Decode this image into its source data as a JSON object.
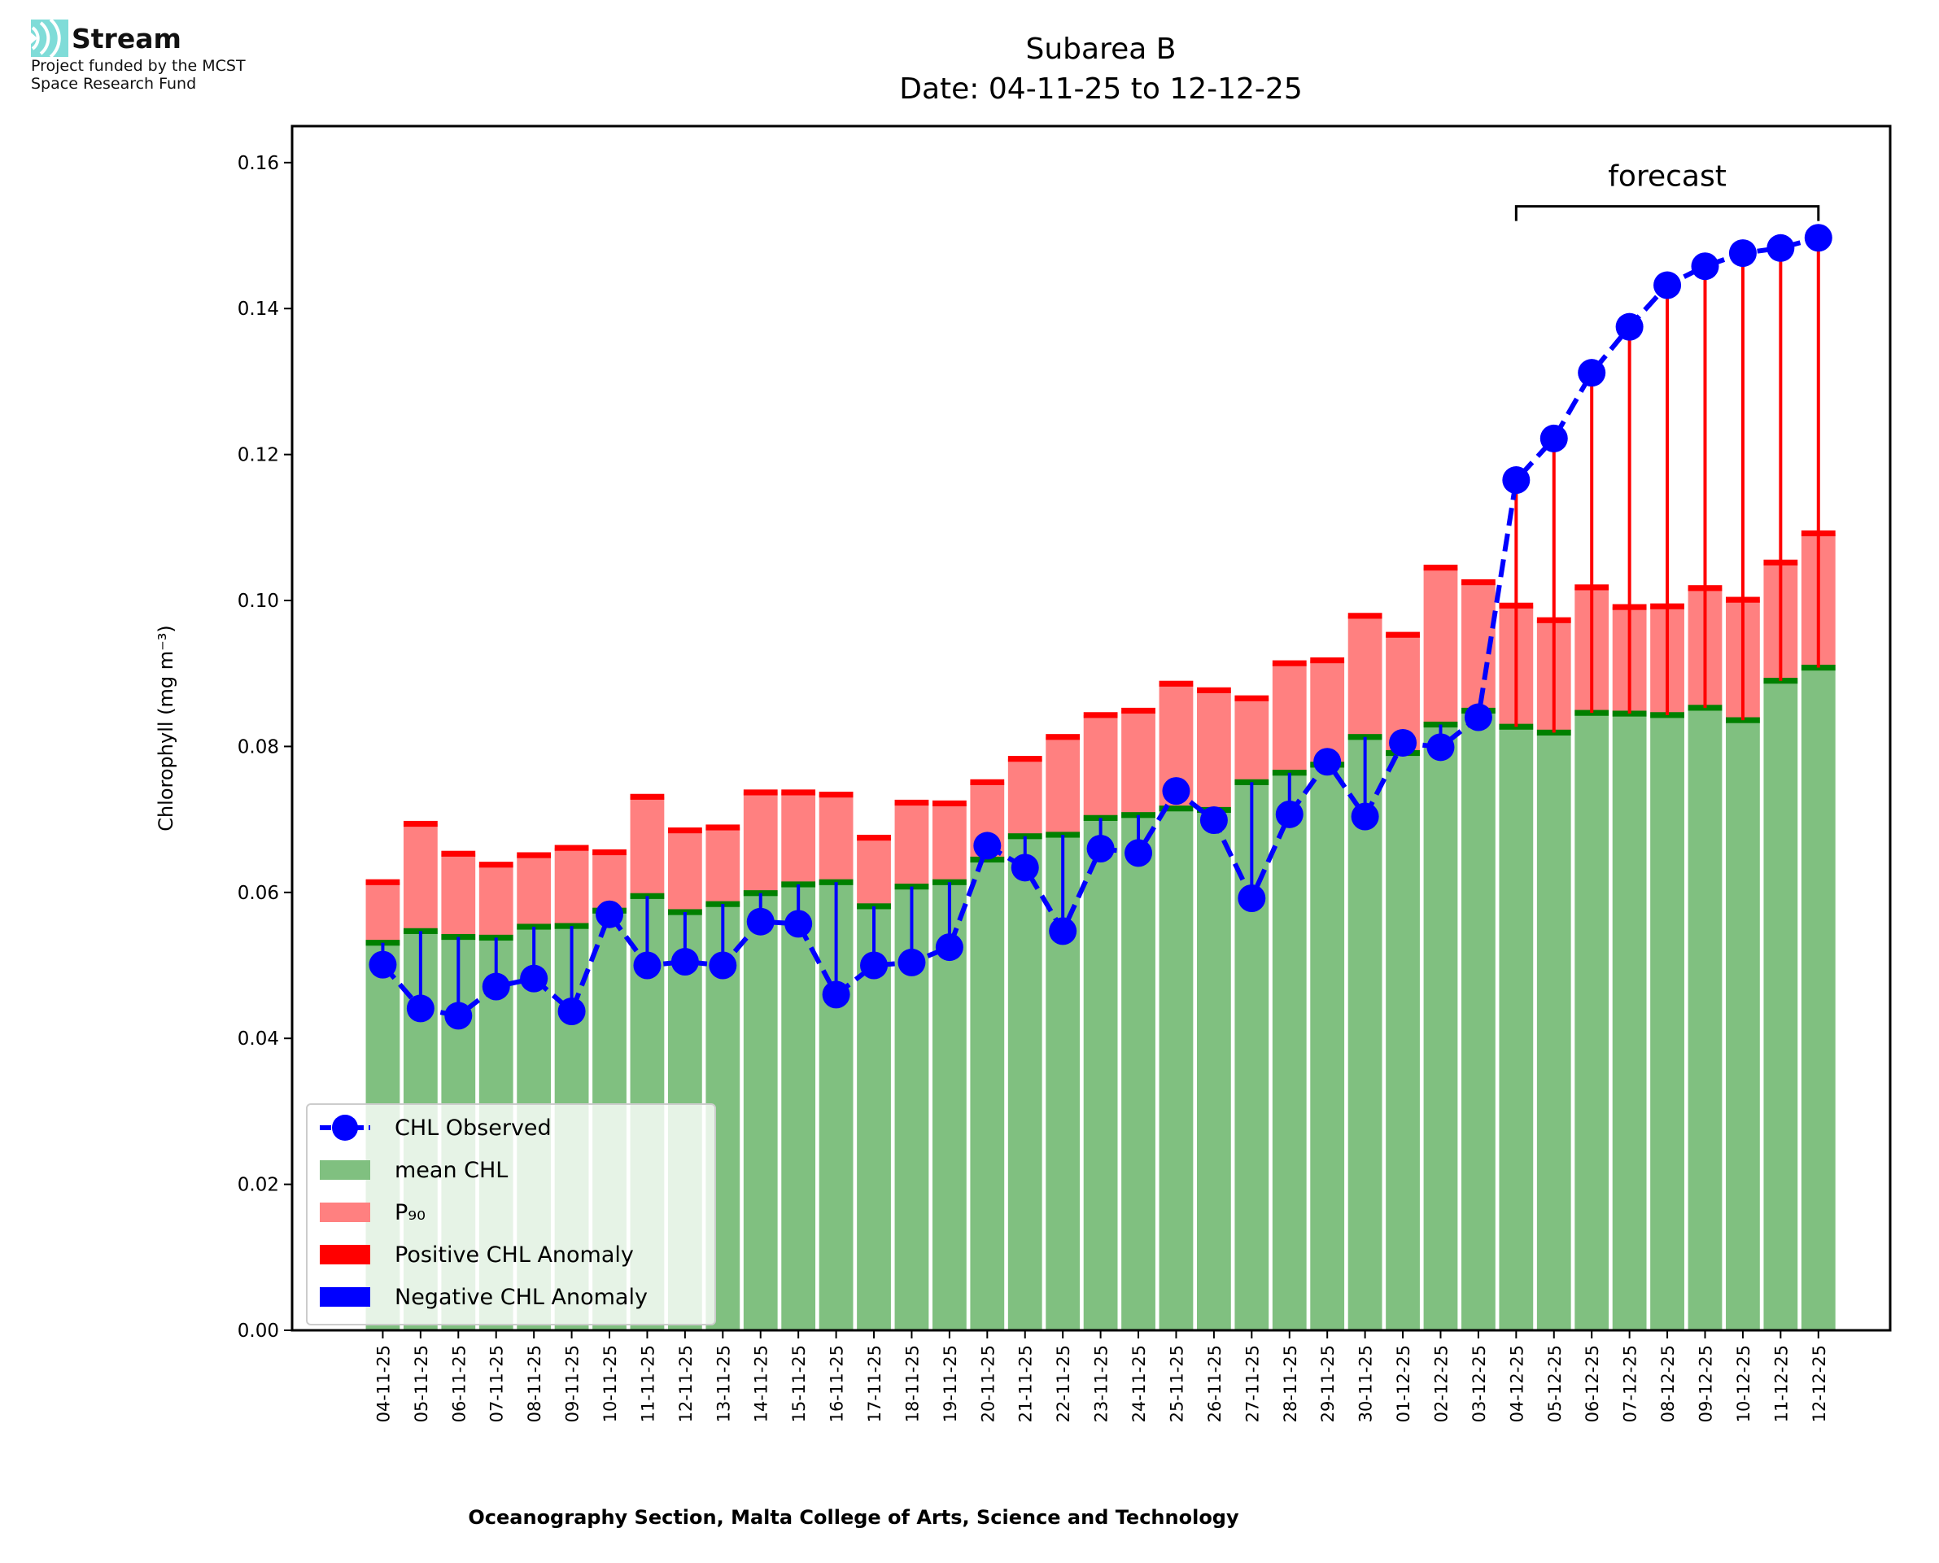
{
  "logo": {
    "name": "Stream",
    "line1": "Project funded by the MCST",
    "line2": "Space Research Fund",
    "color": "#7fdcd8"
  },
  "chart_data": {
    "type": "bar",
    "title": "Subarea B",
    "subtitle": "Date: 04-11-25 to 12-12-25",
    "xlabel": "Oceanography Section, Malta College of Arts, Science and Technology",
    "ylabel": "Chlorophyll (mg m⁻³)",
    "ylim": [
      0,
      0.165
    ],
    "yticks": [
      "0.00",
      "0.02",
      "0.04",
      "0.06",
      "0.08",
      "0.10",
      "0.12",
      "0.14",
      "0.16"
    ],
    "legend_position": "lower-left",
    "categories": [
      "04-11-25",
      "05-11-25",
      "06-11-25",
      "07-11-25",
      "08-11-25",
      "09-11-25",
      "10-11-25",
      "11-11-25",
      "12-11-25",
      "13-11-25",
      "14-11-25",
      "15-11-25",
      "16-11-25",
      "17-11-25",
      "18-11-25",
      "19-11-25",
      "20-11-25",
      "21-11-25",
      "22-11-25",
      "23-11-25",
      "24-11-25",
      "25-11-25",
      "26-11-25",
      "27-11-25",
      "28-11-25",
      "29-11-25",
      "30-11-25",
      "01-12-25",
      "02-12-25",
      "03-12-25",
      "04-12-25",
      "05-12-25",
      "06-12-25",
      "07-12-25",
      "08-12-25",
      "09-12-25",
      "10-12-25",
      "11-12-25",
      "12-12-25"
    ],
    "series": [
      {
        "name": "mean CHL",
        "color": "#80c080",
        "values": [
          0.0531,
          0.0547,
          0.0539,
          0.0538,
          0.0553,
          0.0554,
          0.0575,
          0.0595,
          0.0573,
          0.0584,
          0.0599,
          0.0611,
          0.0614,
          0.0581,
          0.0608,
          0.0614,
          0.0645,
          0.0677,
          0.0679,
          0.0702,
          0.0706,
          0.0715,
          0.0713,
          0.0751,
          0.0764,
          0.0775,
          0.0813,
          0.0791,
          0.083,
          0.0849,
          0.0827,
          0.0819,
          0.0846,
          0.0845,
          0.0843,
          0.0853,
          0.0836,
          0.089,
          0.0908
        ]
      },
      {
        "name": "P₉₀",
        "color": "#ff8080",
        "values": [
          0.0614,
          0.0694,
          0.0653,
          0.0638,
          0.0651,
          0.0661,
          0.0655,
          0.0731,
          0.0685,
          0.0689,
          0.0737,
          0.0737,
          0.0734,
          0.0675,
          0.0723,
          0.0722,
          0.0751,
          0.0783,
          0.0813,
          0.0843,
          0.0849,
          0.0886,
          0.0877,
          0.0866,
          0.0914,
          0.0918,
          0.0979,
          0.0953,
          0.1045,
          0.1025,
          0.0993,
          0.0973,
          0.1018,
          0.0991,
          0.0992,
          0.1017,
          0.1001,
          0.1052,
          0.1092
        ]
      },
      {
        "name": "CHL Observed",
        "color": "#0000ff",
        "values": [
          0.0501,
          0.0441,
          0.0431,
          0.0471,
          0.0482,
          0.0437,
          0.057,
          0.05,
          0.0505,
          0.05,
          0.056,
          0.0557,
          0.046,
          0.05,
          0.0504,
          0.0525,
          0.0664,
          0.0634,
          0.0547,
          0.066,
          0.0654,
          0.0739,
          0.0699,
          0.0592,
          0.0707,
          0.0779,
          0.0704,
          0.0805,
          0.0799,
          0.084,
          0.1165,
          0.1222,
          0.1312,
          0.1375,
          0.1432,
          0.1458,
          0.1476,
          0.1483,
          0.1497
        ]
      }
    ],
    "legend": [
      "CHL Observed",
      "mean CHL",
      "P₉₀",
      "Positive CHL Anomaly",
      "Negative CHL Anomaly"
    ],
    "colors": {
      "mean_band": "#008000",
      "p90_band": "#ff0000",
      "positive": "#ff0000",
      "negative": "#0000ff"
    },
    "annotation": {
      "text": "forecast",
      "from": "04-12-25",
      "to": "12-12-25",
      "y": 0.154
    }
  }
}
